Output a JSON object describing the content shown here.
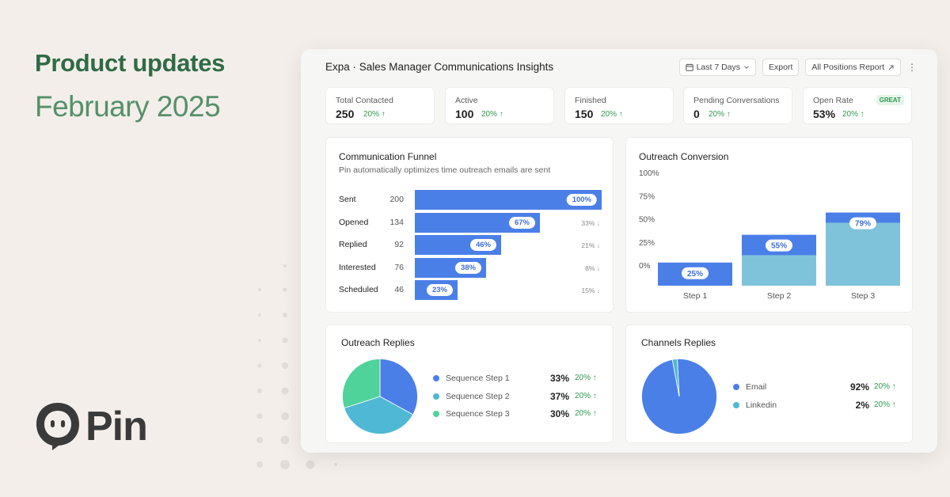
{
  "hero": {
    "headline": "Product updates",
    "subline": "February 2025",
    "brand": "Pin"
  },
  "colors": {
    "headline": "#2f6b45",
    "subline": "#56906a",
    "accent_blue": "#4b7fe8",
    "light_blue": "#7fc3da",
    "teal": "#4fb8d4",
    "green": "#4fd39b",
    "positive": "#2e9a4d"
  },
  "dashboard": {
    "title": "Expa · Sales Manager Communications Insights",
    "toolbar": {
      "date_range": "Last 7 Days",
      "export": "Export",
      "report": "All Positions Report"
    },
    "icons": {
      "calendar": "calendar-icon",
      "chevron": "chevron-down-icon",
      "external": "external-link-icon",
      "more": "more-vertical-icon"
    },
    "stats": [
      {
        "label": "Total Contacted",
        "value": "250",
        "change": "20% ↑",
        "badge": ""
      },
      {
        "label": "Active",
        "value": "100",
        "change": "20% ↑",
        "badge": ""
      },
      {
        "label": "Finished",
        "value": "150",
        "change": "20% ↑",
        "badge": ""
      },
      {
        "label": "Pending Conversations",
        "value": "0",
        "change": "20% ↑",
        "badge": ""
      },
      {
        "label": "Open Rate",
        "value": "53%",
        "change": "20% ↑",
        "badge": "GREAT"
      }
    ],
    "funnel": {
      "title": "Communication Funnel",
      "subtitle": "Pin automatically optimizes time outreach emails are sent",
      "rows": [
        {
          "label": "Sent",
          "count": "200",
          "pct": "100%",
          "fraction": 1.0,
          "drop": ""
        },
        {
          "label": "Opened",
          "count": "134",
          "pct": "67%",
          "fraction": 0.67,
          "drop": "33% ↓"
        },
        {
          "label": "Replied",
          "count": "92",
          "pct": "46%",
          "fraction": 0.46,
          "drop": "21% ↓"
        },
        {
          "label": "Interested",
          "count": "76",
          "pct": "38%",
          "fraction": 0.38,
          "drop": "8% ↓"
        },
        {
          "label": "Scheduled",
          "count": "46",
          "pct": "23%",
          "fraction": 0.23,
          "drop": "15% ↓"
        }
      ]
    },
    "conversion": {
      "title": "Outreach Conversion"
    },
    "outreach_replies": {
      "title": "Outreach Replies",
      "items": [
        {
          "label": "Sequence Step 1",
          "pct": "33%",
          "change": "20% ↑",
          "color": "#4b7fe8"
        },
        {
          "label": "Sequence Step 2",
          "pct": "37%",
          "change": "20% ↑",
          "color": "#4fb8d4"
        },
        {
          "label": "Sequence Step 3",
          "pct": "30%",
          "change": "20% ↑",
          "color": "#4fd39b"
        }
      ]
    },
    "channels_replies": {
      "title": "Channels Replies",
      "items": [
        {
          "label": "Email",
          "pct": "92%",
          "change": "20% ↑",
          "color": "#4b7fe8"
        },
        {
          "label": "Linkedin",
          "pct": "2%",
          "change": "20% ↑",
          "color": "#4fb8d4"
        }
      ]
    }
  },
  "chart_data": [
    {
      "type": "bar",
      "categories": [
        "Step 1",
        "Step 2",
        "Step 3"
      ],
      "series": [
        {
          "values": [
            25,
            55,
            79
          ]
        },
        {
          "values": [
            0,
            33,
            68
          ]
        }
      ],
      "data_labels": [
        "25%",
        "55%",
        "79%"
      ],
      "ytick_labels": [
        "100%",
        "75%",
        "50%",
        "25%",
        "0%"
      ],
      "ylim": [
        0,
        100
      ],
      "colors": [
        "#4b7fe8",
        "#7fc3da"
      ]
    },
    {
      "type": "pie",
      "labels": [
        "Sequence Step 1",
        "Sequence Step 2",
        "Sequence Step 3"
      ],
      "values": [
        33,
        37,
        30
      ],
      "colors": [
        "#4b7fe8",
        "#4fb8d4",
        "#4fd39b"
      ]
    },
    {
      "type": "pie",
      "labels": [
        "Email",
        "Linkedin"
      ],
      "values": [
        92,
        2
      ],
      "colors": [
        "#4b7fe8",
        "#4fb8d4"
      ]
    }
  ]
}
